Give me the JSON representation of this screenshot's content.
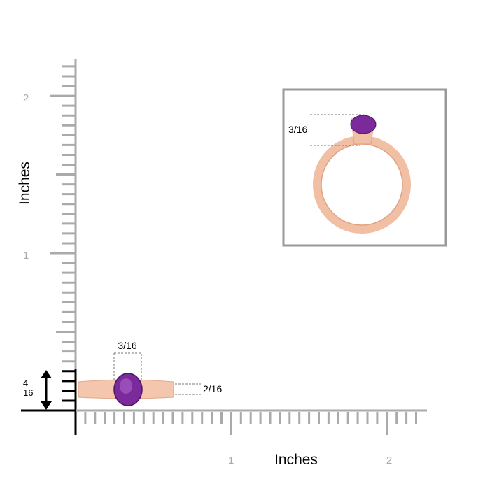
{
  "axes": {
    "x_label": "Inches",
    "y_label": "Inches",
    "x_ticks": [
      "1",
      "2"
    ],
    "y_ticks": [
      "2",
      "1"
    ]
  },
  "dimensions": {
    "gem_width": "3/16",
    "band_width": "2/16",
    "height_top": "4",
    "height_bottom": "16",
    "inset_gem_height": "3/16"
  }
}
